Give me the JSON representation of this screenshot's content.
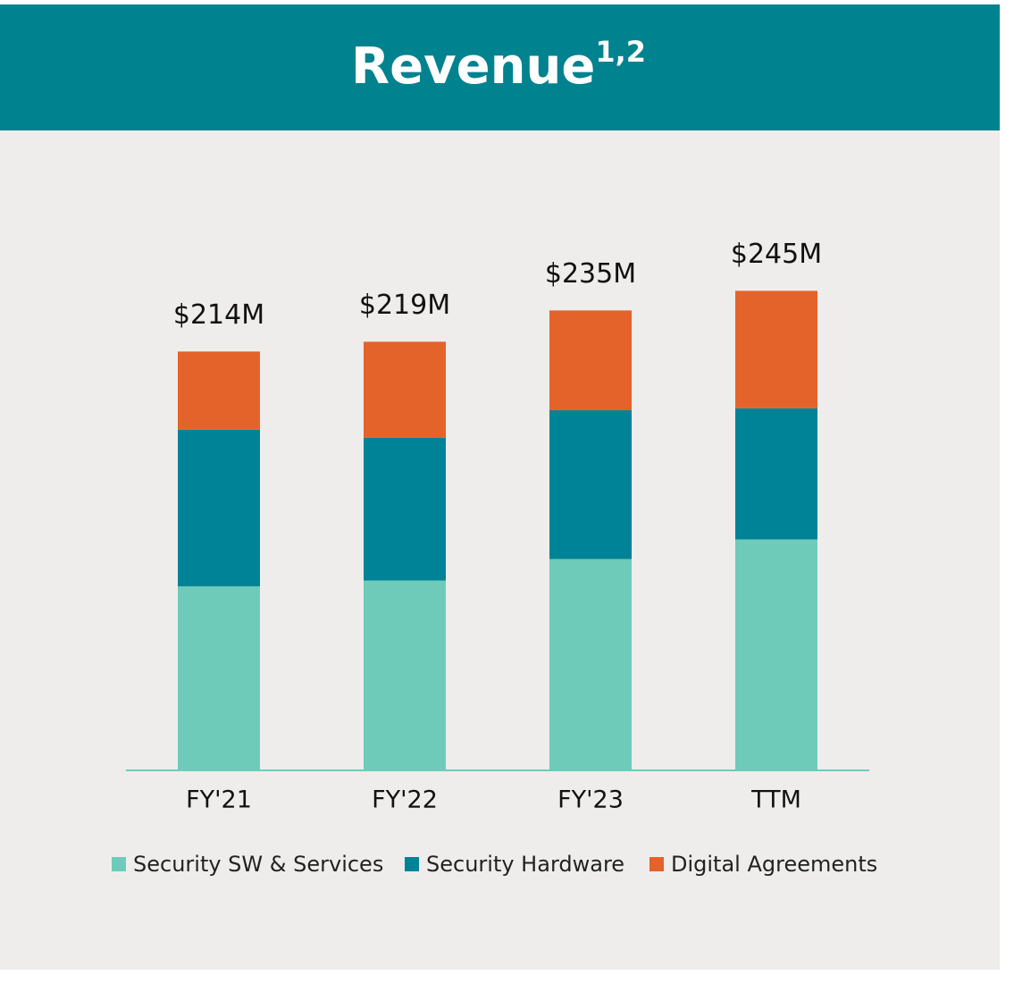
{
  "chart_data": {
    "type": "stacked_bar",
    "title": "Revenue",
    "title_superscript": "1,2",
    "categories": [
      "FY'21",
      "FY'22",
      "FY'23",
      "TTM"
    ],
    "series": [
      {
        "name": "Security SW & Services",
        "color": "#6ecbba",
        "values": [
          94,
          97,
          108,
          118
        ]
      },
      {
        "name": "Security Hardware",
        "color": "#008397",
        "values": [
          80,
          73,
          76,
          67
        ]
      },
      {
        "name": "Digital Agreements",
        "color": "#e4632b",
        "values": [
          40,
          49,
          51,
          60
        ]
      }
    ],
    "totals": {
      "values": [
        214,
        219,
        235,
        245
      ],
      "value_labels": [
        "$214M",
        "$219M",
        "$235M",
        "$245M"
      ]
    },
    "legend": "bottom"
  }
}
